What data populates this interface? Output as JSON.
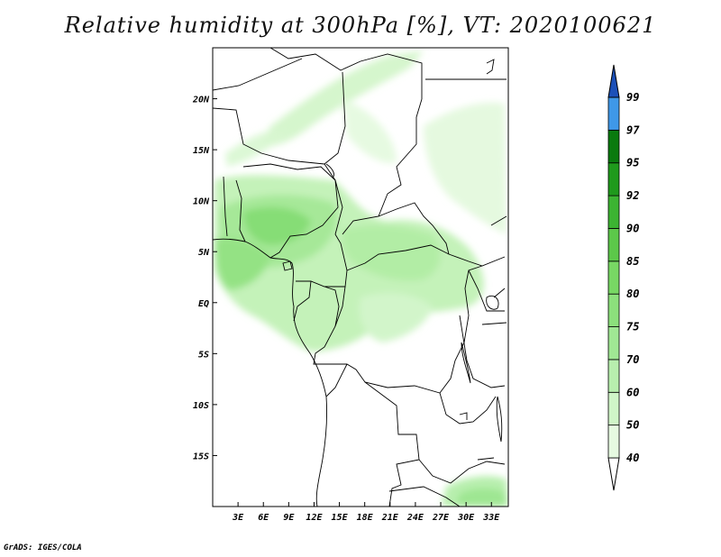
{
  "title": "Relative humidity at 300hPa [%], VT: 2020100621",
  "credit": "GrADS: IGES/COLA",
  "map": {
    "lon_range": [
      0,
      35
    ],
    "lat_range": [
      -20,
      25
    ],
    "x_ticks": [
      {
        "lon": 3,
        "label": "3E"
      },
      {
        "lon": 6,
        "label": "6E"
      },
      {
        "lon": 9,
        "label": "9E"
      },
      {
        "lon": 12,
        "label": "12E"
      },
      {
        "lon": 15,
        "label": "15E"
      },
      {
        "lon": 18,
        "label": "18E"
      },
      {
        "lon": 21,
        "label": "21E"
      },
      {
        "lon": 24,
        "label": "24E"
      },
      {
        "lon": 27,
        "label": "27E"
      },
      {
        "lon": 30,
        "label": "30E"
      },
      {
        "lon": 33,
        "label": "33E"
      }
    ],
    "y_ticks": [
      {
        "lat": 20,
        "label": "20N"
      },
      {
        "lat": 15,
        "label": "15N"
      },
      {
        "lat": 10,
        "label": "10N"
      },
      {
        "lat": 5,
        "label": "5N"
      },
      {
        "lat": 0,
        "label": "EQ"
      },
      {
        "lat": -5,
        "label": "5S"
      },
      {
        "lat": -10,
        "label": "10S"
      },
      {
        "lat": -15,
        "label": "15S"
      }
    ]
  },
  "colorbar": {
    "levels": [
      "40",
      "50",
      "60",
      "70",
      "75",
      "80",
      "85",
      "90",
      "92",
      "95",
      "97",
      "99"
    ],
    "colors": [
      "#e6fae1",
      "#d0f5c8",
      "#b8efae",
      "#a0e794",
      "#8ce07c",
      "#78d864",
      "#5cc84a",
      "#3cb432",
      "#1f9a1c",
      "#0a7a0e",
      "#3f98e8",
      "#2a74d8",
      "#1c50b8"
    ],
    "under_color": "#ffffff"
  }
}
